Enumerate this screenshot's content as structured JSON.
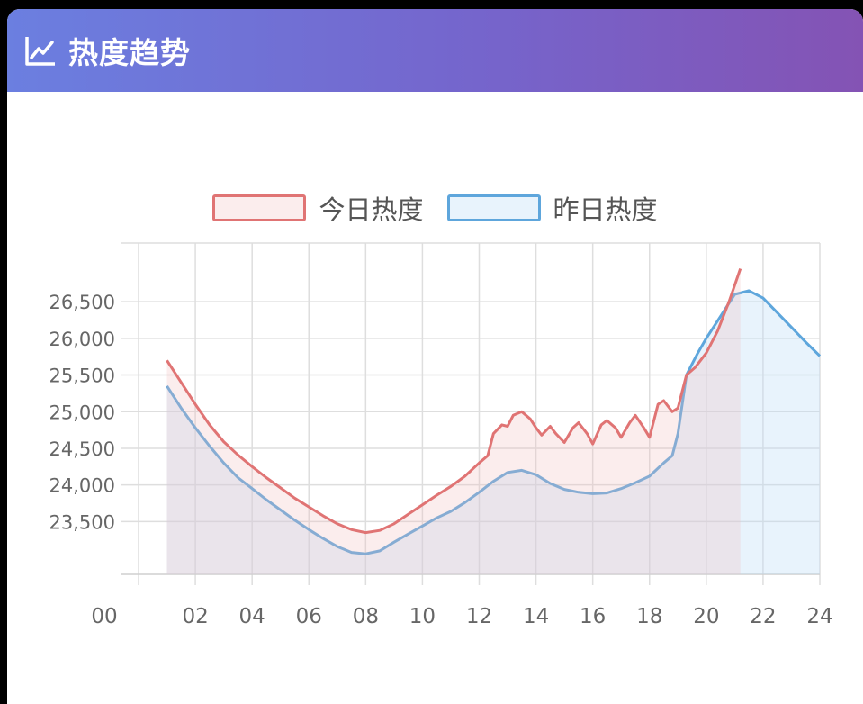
{
  "header": {
    "title": "热度趋势",
    "icon": "line-chart-icon"
  },
  "colors": {
    "today": "#e07474",
    "today_fill": "rgba(240,190,190,0.28)",
    "yesterday": "#5ea6dc",
    "yesterday_fill": "rgba(190,220,245,0.35)"
  },
  "chart_data": {
    "type": "line",
    "title": "",
    "xlabel": "",
    "ylabel": "",
    "x_ticks": [
      "00",
      "02",
      "04",
      "06",
      "08",
      "10",
      "12",
      "14",
      "16",
      "18",
      "20",
      "22",
      "24"
    ],
    "y_ticks": [
      "23,500",
      "24,000",
      "24,500",
      "25,000",
      "25,500",
      "26,000",
      "26,500"
    ],
    "y_tick_values": [
      23500,
      24000,
      24500,
      25000,
      25500,
      26000,
      26500
    ],
    "xlim": [
      0,
      24
    ],
    "ylim": [
      22780,
      27300
    ],
    "grid": true,
    "legend_position": "top-center",
    "series": [
      {
        "name": "今日热度",
        "points": [
          [
            1.0,
            25700
          ],
          [
            1.5,
            25400
          ],
          [
            2.0,
            25100
          ],
          [
            2.5,
            24820
          ],
          [
            3.0,
            24590
          ],
          [
            3.5,
            24410
          ],
          [
            4.0,
            24250
          ],
          [
            4.5,
            24100
          ],
          [
            5.0,
            23960
          ],
          [
            5.5,
            23820
          ],
          [
            6.0,
            23700
          ],
          [
            6.5,
            23580
          ],
          [
            7.0,
            23470
          ],
          [
            7.5,
            23390
          ],
          [
            8.0,
            23350
          ],
          [
            8.5,
            23380
          ],
          [
            9.0,
            23470
          ],
          [
            9.5,
            23600
          ],
          [
            10.0,
            23730
          ],
          [
            10.5,
            23860
          ],
          [
            11.0,
            23980
          ],
          [
            11.5,
            24120
          ],
          [
            12.0,
            24300
          ],
          [
            12.3,
            24400
          ],
          [
            12.5,
            24700
          ],
          [
            12.8,
            24820
          ],
          [
            13.0,
            24800
          ],
          [
            13.2,
            24950
          ],
          [
            13.5,
            25000
          ],
          [
            13.8,
            24900
          ],
          [
            14.0,
            24780
          ],
          [
            14.2,
            24680
          ],
          [
            14.5,
            24800
          ],
          [
            14.7,
            24700
          ],
          [
            15.0,
            24580
          ],
          [
            15.3,
            24780
          ],
          [
            15.5,
            24850
          ],
          [
            15.8,
            24700
          ],
          [
            16.0,
            24560
          ],
          [
            16.3,
            24820
          ],
          [
            16.5,
            24880
          ],
          [
            16.8,
            24780
          ],
          [
            17.0,
            24650
          ],
          [
            17.3,
            24850
          ],
          [
            17.5,
            24950
          ],
          [
            17.8,
            24780
          ],
          [
            18.0,
            24650
          ],
          [
            18.3,
            25100
          ],
          [
            18.5,
            25150
          ],
          [
            18.8,
            25000
          ],
          [
            19.0,
            25050
          ],
          [
            19.3,
            25500
          ],
          [
            19.6,
            25600
          ],
          [
            20.0,
            25800
          ],
          [
            20.4,
            26100
          ],
          [
            20.8,
            26500
          ],
          [
            21.2,
            26950
          ]
        ]
      },
      {
        "name": "昨日热度",
        "points": [
          [
            1.0,
            25350
          ],
          [
            1.5,
            25050
          ],
          [
            2.0,
            24780
          ],
          [
            2.5,
            24530
          ],
          [
            3.0,
            24300
          ],
          [
            3.5,
            24100
          ],
          [
            4.0,
            23950
          ],
          [
            4.5,
            23800
          ],
          [
            5.0,
            23660
          ],
          [
            5.5,
            23520
          ],
          [
            6.0,
            23390
          ],
          [
            6.5,
            23270
          ],
          [
            7.0,
            23160
          ],
          [
            7.5,
            23080
          ],
          [
            8.0,
            23060
          ],
          [
            8.5,
            23100
          ],
          [
            9.0,
            23220
          ],
          [
            9.5,
            23330
          ],
          [
            10.0,
            23440
          ],
          [
            10.5,
            23550
          ],
          [
            11.0,
            23640
          ],
          [
            11.5,
            23760
          ],
          [
            12.0,
            23900
          ],
          [
            12.5,
            24050
          ],
          [
            13.0,
            24170
          ],
          [
            13.5,
            24200
          ],
          [
            14.0,
            24140
          ],
          [
            14.5,
            24020
          ],
          [
            15.0,
            23940
          ],
          [
            15.5,
            23900
          ],
          [
            16.0,
            23880
          ],
          [
            16.5,
            23890
          ],
          [
            17.0,
            23950
          ],
          [
            17.5,
            24030
          ],
          [
            18.0,
            24120
          ],
          [
            18.5,
            24300
          ],
          [
            18.8,
            24400
          ],
          [
            19.0,
            24700
          ],
          [
            19.3,
            25500
          ],
          [
            19.7,
            25800
          ],
          [
            20.0,
            26000
          ],
          [
            20.5,
            26300
          ],
          [
            21.0,
            26600
          ],
          [
            21.5,
            26650
          ],
          [
            22.0,
            26550
          ],
          [
            22.5,
            26350
          ],
          [
            23.0,
            26150
          ],
          [
            23.5,
            25950
          ],
          [
            24.0,
            25760
          ]
        ]
      }
    ]
  }
}
